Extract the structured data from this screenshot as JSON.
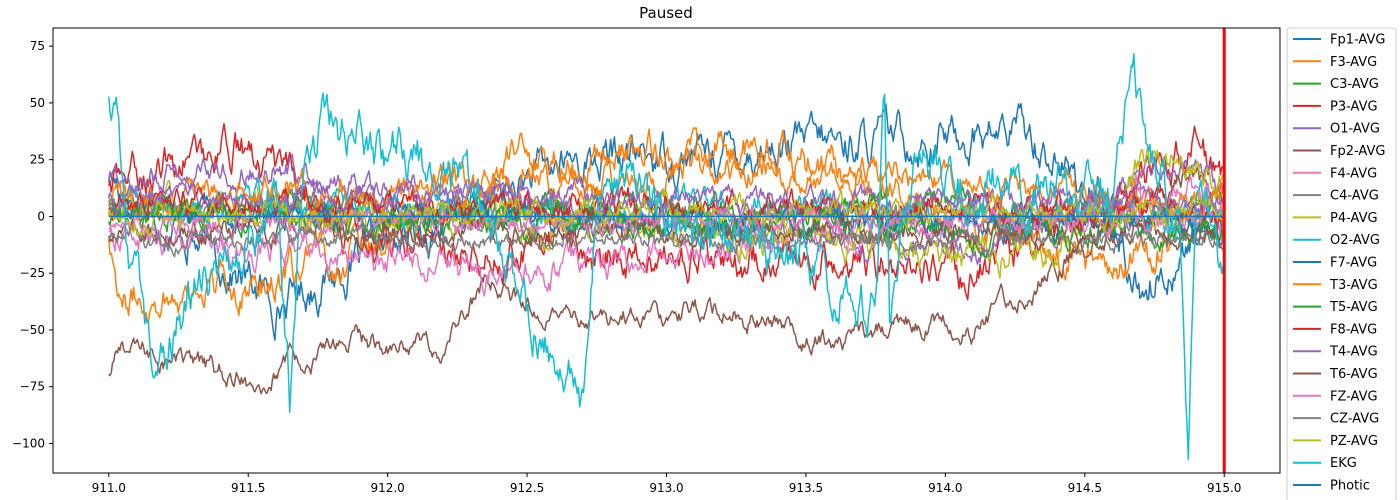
{
  "chart_data": {
    "type": "line",
    "title": "Paused",
    "xlabel": "",
    "ylabel": "",
    "xlim": [
      910.8,
      915.2
    ],
    "ylim": [
      -113,
      83
    ],
    "x_range": [
      911.0,
      915.0
    ],
    "x_ticks": [
      911.0,
      911.5,
      912.0,
      912.5,
      913.0,
      913.5,
      914.0,
      914.5,
      915.0
    ],
    "x_tick_labels": [
      "911.0",
      "911.5",
      "912.0",
      "912.5",
      "913.0",
      "913.5",
      "914.0",
      "914.5",
      "915.0"
    ],
    "y_ticks": [
      75,
      50,
      25,
      0,
      -25,
      -50,
      -75,
      -100
    ],
    "y_tick_labels": [
      "75",
      "50",
      "25",
      "0",
      "−25",
      "−50",
      "−75",
      "−100"
    ],
    "grid": false,
    "legend_position": "outside-right",
    "cursor": {
      "x": 915.0,
      "color": "#ff0000"
    },
    "series": [
      {
        "name": "Fp1-AVG",
        "color": "#1f77b4",
        "amp": 11,
        "offset": 0,
        "anchors": [
          [
            911.0,
            18
          ],
          [
            911.6,
            -38
          ],
          [
            912.65,
            24
          ],
          [
            914.3,
            38
          ],
          [
            914.55,
            5
          ],
          [
            914.7,
            -32
          ],
          [
            915.0,
            0
          ]
        ]
      },
      {
        "name": "F3-AVG",
        "color": "#ff7f0e",
        "amp": 10,
        "offset": 0,
        "anchors": [
          [
            911.0,
            -8
          ],
          [
            911.05,
            -37
          ],
          [
            911.7,
            -25
          ],
          [
            912.45,
            24
          ],
          [
            913.0,
            28
          ],
          [
            913.35,
            29
          ],
          [
            914.6,
            -22
          ],
          [
            915.0,
            5
          ]
        ]
      },
      {
        "name": "C3-AVG",
        "color": "#2ca02c",
        "amp": 7,
        "offset": 0,
        "anchors": [
          [
            911.0,
            2
          ],
          [
            915.0,
            3
          ]
        ]
      },
      {
        "name": "P3-AVG",
        "color": "#d62728",
        "amp": 10,
        "offset": 4,
        "anchors": [
          [
            911.0,
            10
          ],
          [
            911.45,
            28
          ],
          [
            911.9,
            -15
          ],
          [
            913.85,
            -25
          ],
          [
            914.1,
            -28
          ],
          [
            914.9,
            27
          ],
          [
            915.0,
            5
          ]
        ]
      },
      {
        "name": "O1-AVG",
        "color": "#9467bd",
        "amp": 7,
        "offset": 4,
        "anchors": [
          [
            911.0,
            12
          ],
          [
            911.6,
            17
          ],
          [
            914.1,
            -22
          ],
          [
            914.85,
            22
          ],
          [
            915.0,
            6
          ]
        ]
      },
      {
        "name": "Fp2-AVG",
        "color": "#8c564b",
        "amp": 6,
        "offset": -15,
        "anchors": [
          [
            911.0,
            -55
          ],
          [
            911.05,
            -42
          ],
          [
            911.5,
            -58
          ],
          [
            911.9,
            -40
          ],
          [
            912.2,
            -43
          ],
          [
            912.35,
            -12
          ],
          [
            912.6,
            -30
          ],
          [
            913.15,
            -25
          ],
          [
            913.55,
            -40
          ],
          [
            914.0,
            -31
          ],
          [
            914.1,
            -36
          ],
          [
            914.55,
            5
          ],
          [
            914.9,
            38
          ],
          [
            915.0,
            2
          ]
        ]
      },
      {
        "name": "F4-AVG",
        "color": "#e377c2",
        "amp": 8,
        "offset": -3,
        "anchors": [
          [
            911.0,
            -5
          ],
          [
            912.45,
            -22
          ],
          [
            914.95,
            12
          ],
          [
            915.0,
            -2
          ]
        ]
      },
      {
        "name": "C4-AVG",
        "color": "#7f7f7f",
        "amp": 6,
        "offset": 0,
        "anchors": [
          [
            911.0,
            3
          ],
          [
            915.0,
            0
          ]
        ]
      },
      {
        "name": "P4-AVG",
        "color": "#bcbd22",
        "amp": 9,
        "offset": 2,
        "anchors": [
          [
            911.0,
            5
          ],
          [
            914.4,
            -18
          ],
          [
            914.75,
            24
          ],
          [
            915.0,
            13
          ]
        ]
      },
      {
        "name": "O2-AVG",
        "color": "#17becf",
        "amp": 8,
        "offset": 0,
        "anchors": [
          [
            911.0,
            4
          ],
          [
            915.0,
            1
          ]
        ]
      },
      {
        "name": "F7-AVG",
        "color": "#1f77b4",
        "amp": 7,
        "offset": -3,
        "anchors": [
          [
            911.0,
            5
          ],
          [
            915.0,
            -2
          ]
        ]
      },
      {
        "name": "T3-AVG",
        "color": "#ff7f0e",
        "amp": 8,
        "offset": 2,
        "anchors": [
          [
            911.0,
            3
          ],
          [
            913.3,
            18
          ],
          [
            915.0,
            4
          ]
        ]
      },
      {
        "name": "T5-AVG",
        "color": "#2ca02c",
        "amp": 7,
        "offset": -3,
        "anchors": [
          [
            911.0,
            4
          ],
          [
            915.0,
            -4
          ]
        ]
      },
      {
        "name": "F8-AVG",
        "color": "#d62728",
        "amp": 7,
        "offset": 0,
        "anchors": [
          [
            911.0,
            6
          ],
          [
            915.0,
            2
          ]
        ]
      },
      {
        "name": "T4-AVG",
        "color": "#9467bd",
        "amp": 6,
        "offset": 2,
        "anchors": [
          [
            911.0,
            8
          ],
          [
            915.0,
            4
          ]
        ]
      },
      {
        "name": "T6-AVG",
        "color": "#8c564b",
        "amp": 6,
        "offset": -4,
        "anchors": [
          [
            911.0,
            -3
          ],
          [
            915.0,
            -2
          ]
        ]
      },
      {
        "name": "FZ-AVG",
        "color": "#e377c2",
        "amp": 6,
        "offset": -2,
        "anchors": [
          [
            911.0,
            -2
          ],
          [
            915.0,
            0
          ]
        ]
      },
      {
        "name": "CZ-AVG",
        "color": "#7f7f7f",
        "amp": 5,
        "offset": -6,
        "anchors": [
          [
            911.0,
            -4
          ],
          [
            915.0,
            -5
          ]
        ]
      },
      {
        "name": "PZ-AVG",
        "color": "#bcbd22",
        "amp": 6,
        "offset": 0,
        "anchors": [
          [
            911.0,
            0
          ],
          [
            915.0,
            2
          ]
        ]
      },
      {
        "name": "EKG",
        "color": "#17becf",
        "amp": 14,
        "offset": 0,
        "anchors": [
          [
            911.0,
            52
          ],
          [
            911.03,
            38
          ],
          [
            911.06,
            -15
          ],
          [
            911.15,
            -55
          ],
          [
            911.25,
            -48
          ],
          [
            911.6,
            10
          ],
          [
            911.65,
            -82
          ],
          [
            911.7,
            40
          ],
          [
            912.05,
            30
          ],
          [
            912.25,
            20
          ],
          [
            912.7,
            -83
          ],
          [
            912.75,
            20
          ],
          [
            913.75,
            -40
          ],
          [
            913.78,
            55
          ],
          [
            913.8,
            -45
          ],
          [
            913.85,
            15
          ],
          [
            914.6,
            5
          ],
          [
            914.67,
            73
          ],
          [
            914.72,
            40
          ],
          [
            914.78,
            10
          ],
          [
            914.84,
            5
          ],
          [
            914.87,
            -105
          ],
          [
            914.9,
            5
          ],
          [
            915.0,
            -20
          ]
        ]
      },
      {
        "name": "Photic",
        "color": "#1f77b4",
        "amp": 0,
        "offset": 0,
        "anchors": [
          [
            911.0,
            0
          ],
          [
            915.0,
            0
          ]
        ]
      }
    ]
  }
}
